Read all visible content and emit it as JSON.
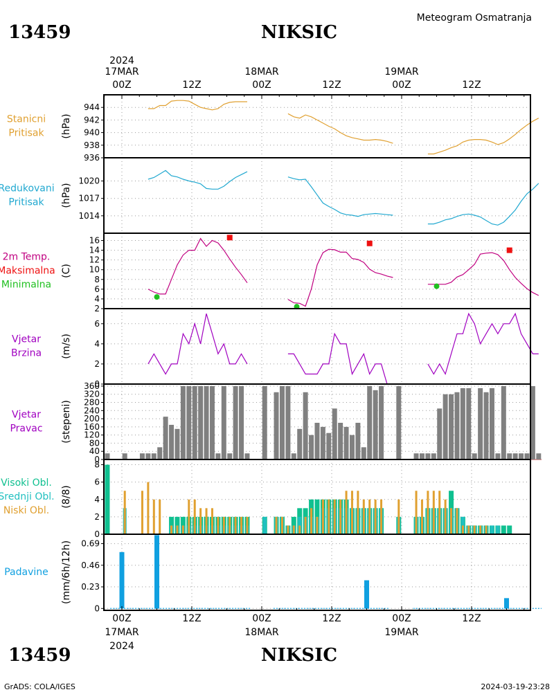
{
  "header": {
    "station_id": "13459",
    "station_name": "NIKSIC",
    "subtitle": "Meteogram  Osmatranja"
  },
  "time_axis": {
    "year": "2024",
    "top_dates": [
      "17MAR",
      "18MAR",
      "19MAR"
    ],
    "bottom_dates": [
      "17MAR",
      "18MAR",
      "19MAR"
    ],
    "hour_labels": [
      "00Z",
      "12Z",
      "00Z",
      "12Z",
      "00Z",
      "12Z"
    ]
  },
  "footer": {
    "credit": "GrADS: COLA/IGES",
    "timestamp": "2024-03-19-23:28"
  },
  "colors": {
    "station_pressure": "#e0a030",
    "reduced_pressure": "#20a8d0",
    "temp_line": "#c00080",
    "tmax": "#ee1010",
    "tmin": "#20c020",
    "wind": "#a000c0",
    "wind_dir": "#808080",
    "wind_dir_base": "#c03030",
    "cloud_high": "#10c090",
    "cloud_mid": "#20c0c0",
    "cloud_low": "#e0a030",
    "precip": "#10a0e0"
  },
  "chart_data": [
    {
      "type": "line",
      "panel": "station_pressure",
      "ylabel_left": [
        "Stanicni",
        "Pritisak"
      ],
      "yunit": "(hPa)",
      "ylim": [
        936,
        946
      ],
      "yticks": [
        936,
        938,
        940,
        942,
        944
      ],
      "series": [
        {
          "x": [
            4.5,
            5.5,
            6.5,
            7.5,
            8.5,
            9.5,
            10.5,
            11.5,
            12.5,
            13.5,
            14.5,
            15.5,
            16.5,
            17.5,
            18.5,
            19.5,
            20.5,
            21.5
          ],
          "y": [
            943.8,
            943.8,
            944.3,
            944.3,
            945.0,
            945.1,
            945.1,
            945.0,
            944.5,
            944.0,
            943.8,
            943.6,
            943.8,
            944.5,
            944.8,
            944.9,
            944.9,
            944.9
          ]
        },
        {
          "x": [
            28.5,
            29.5,
            30.5,
            31.5,
            32.5,
            33.5,
            34.5,
            35.5,
            36.5,
            37.5,
            38.5,
            39.5,
            40.5,
            41.5,
            42.5,
            43.5,
            44.5,
            45.5,
            46.5
          ],
          "y": [
            943.0,
            942.5,
            942.3,
            942.8,
            942.5,
            942.0,
            941.5,
            941.0,
            940.6,
            940.0,
            939.5,
            939.2,
            939.0,
            938.8,
            938.8,
            938.9,
            938.8,
            938.6,
            938.3
          ]
        },
        {
          "x": [
            52.5,
            53.5,
            54.5,
            55.5,
            56.5,
            57.5,
            58.5,
            59.5,
            60.5,
            61.5,
            62.5,
            63.5,
            64.5,
            65.5,
            66.5,
            67.5,
            68.5,
            69.5,
            70.5,
            71.5
          ],
          "y": [
            936.6,
            936.6,
            936.9,
            937.2,
            937.6,
            937.9,
            938.5,
            938.8,
            938.9,
            938.9,
            938.8,
            938.5,
            938.1,
            938.4,
            939.0,
            939.7,
            940.5,
            941.2,
            941.8,
            942.3
          ]
        }
      ]
    },
    {
      "type": "line",
      "panel": "reduced_pressure",
      "ylabel_left": [
        "Redukovani",
        "Pritisak"
      ],
      "yunit": "(hPa)",
      "ylim": [
        1011,
        1024
      ],
      "yticks": [
        1014,
        1017,
        1020
      ],
      "series": [
        {
          "x": [
            4.5,
            5.5,
            6.5,
            7.5,
            8.5,
            9.5,
            10.5,
            11.5,
            12.5,
            13.5,
            14.5,
            15.5,
            16.5,
            17.5,
            18.5,
            19.5,
            20.5,
            21.5
          ],
          "y": [
            1020.3,
            1020.6,
            1021.2,
            1021.8,
            1020.9,
            1020.7,
            1020.3,
            1020.0,
            1019.8,
            1019.5,
            1018.7,
            1018.6,
            1018.6,
            1019.1,
            1019.9,
            1020.6,
            1021.1,
            1021.6
          ]
        },
        {
          "x": [
            28.5,
            29.5,
            30.5,
            31.5,
            32.5,
            33.5,
            34.5,
            35.5,
            36.5,
            37.5,
            38.5,
            39.5,
            40.5,
            41.5,
            42.5,
            43.5,
            44.5,
            45.5,
            46.5
          ],
          "y": [
            1020.7,
            1020.4,
            1020.2,
            1020.3,
            1019.0,
            1017.6,
            1016.2,
            1015.6,
            1015.1,
            1014.5,
            1014.2,
            1014.1,
            1013.9,
            1014.2,
            1014.3,
            1014.4,
            1014.3,
            1014.2,
            1014.1
          ]
        },
        {
          "x": [
            52.5,
            53.5,
            54.5,
            55.5,
            56.5,
            57.5,
            58.5,
            59.5,
            60.5,
            61.5,
            62.5,
            63.5,
            64.5,
            65.5,
            66.5,
            67.5,
            68.5,
            69.5,
            70.5,
            71.5
          ],
          "y": [
            1012.6,
            1012.6,
            1012.9,
            1013.3,
            1013.5,
            1013.9,
            1014.2,
            1014.3,
            1014.1,
            1013.8,
            1013.2,
            1012.6,
            1012.4,
            1012.9,
            1013.9,
            1015.0,
            1016.5,
            1017.8,
            1018.6,
            1019.6
          ]
        }
      ]
    },
    {
      "type": "line",
      "panel": "temperature",
      "ylabel_left": [
        "2m Temp.",
        "Maksimalna",
        "Minimalna"
      ],
      "yunit": "(C)",
      "ylim": [
        2,
        17.5
      ],
      "yticks": [
        2,
        4,
        6,
        8,
        10,
        12,
        14,
        16
      ],
      "series": [
        {
          "name": "2m Temp.",
          "x": [
            4.5,
            5.5,
            6.5,
            7.5,
            8.5,
            9.5,
            10.5,
            11.5,
            12.5,
            13.5,
            14.5,
            15.5,
            16.5,
            17.5,
            18.5,
            19.5,
            20.5,
            21.5
          ],
          "y": [
            6.0,
            5.4,
            5.0,
            5.0,
            8.0,
            11.0,
            13.0,
            14.0,
            14.0,
            16.4,
            14.8,
            16.0,
            15.5,
            14.0,
            12.2,
            10.5,
            9.0,
            7.3
          ]
        },
        {
          "name": "2m Temp.",
          "x": [
            28.5,
            29.5,
            30.5,
            31.5,
            32.5,
            33.5,
            34.5,
            35.5,
            36.5,
            37.5,
            38.5,
            39.5,
            40.5,
            41.5,
            42.5,
            43.5,
            44.5,
            45.5,
            46.5
          ],
          "y": [
            3.9,
            3.2,
            3.1,
            2.5,
            6.0,
            11.0,
            13.5,
            14.2,
            14.1,
            13.6,
            13.6,
            12.3,
            12.1,
            11.5,
            10.1,
            9.4,
            9.1,
            8.7,
            8.4
          ]
        },
        {
          "name": "2m Temp.",
          "x": [
            52.5,
            53.5,
            54.5,
            55.5,
            56.5,
            57.5,
            58.5,
            59.5,
            60.5,
            61.5,
            62.5,
            63.5,
            64.5,
            65.5,
            66.5,
            67.5,
            68.5,
            69.5,
            70.5,
            71.5
          ],
          "y": [
            7.0,
            7.0,
            7.0,
            7.0,
            7.4,
            8.5,
            9.0,
            10.0,
            11.1,
            13.2,
            13.4,
            13.5,
            13.1,
            11.9,
            10.0,
            8.4,
            7.2,
            6.1,
            5.3,
            4.7
          ]
        }
      ],
      "tmax": {
        "x": [
          18.5,
          42.5,
          66.5
        ],
        "y": [
          16.6,
          15.4,
          14.0
        ]
      },
      "tmin": {
        "x": [
          6.0,
          30.0,
          54.0
        ],
        "y": [
          4.4,
          2.4,
          6.6
        ]
      }
    },
    {
      "type": "line",
      "panel": "wind_speed",
      "ylabel_left": [
        "Vjetar",
        "Brzina"
      ],
      "yunit": "(m/s)",
      "ylim": [
        0,
        7.5
      ],
      "yticks": [
        0,
        2,
        4,
        6
      ],
      "series": [
        {
          "x": [
            4.5,
            5.5,
            6.5,
            7.5,
            8.5,
            9.5,
            10.5,
            11.5,
            12.5,
            13.5,
            14.5,
            15.5,
            16.5,
            17.5,
            18.5,
            19.5,
            20.5,
            21.5
          ],
          "y": [
            2,
            3,
            2,
            1,
            2,
            2,
            5,
            4,
            6,
            4,
            7,
            5,
            3,
            4,
            2,
            2,
            3,
            2
          ]
        },
        {
          "x": [
            28.5,
            29.5,
            30.5,
            31.5,
            32.5,
            33.5,
            34.5,
            35.5,
            36.5,
            37.5,
            38.5,
            39.5,
            40.5,
            41.5,
            42.5,
            43.5,
            44.5,
            45.5,
            46.5
          ],
          "y": [
            3,
            3,
            2,
            1,
            1,
            1,
            2,
            2,
            5,
            4,
            4,
            1,
            2,
            3,
            1,
            2,
            2,
            0,
            0
          ]
        },
        {
          "x": [
            52.5,
            53.5,
            54.5,
            55.5,
            56.5,
            57.5,
            58.5,
            59.5,
            60.5,
            61.5,
            62.5,
            63.5,
            64.5,
            65.5,
            66.5,
            67.5,
            68.5,
            69.5,
            70.5,
            71.5
          ],
          "y": [
            2,
            1,
            2,
            1,
            3,
            5,
            5,
            7,
            6,
            4,
            5,
            6,
            5,
            6,
            6,
            7,
            5,
            4,
            3,
            3
          ]
        }
      ]
    },
    {
      "type": "bar",
      "panel": "wind_direction",
      "ylabel_left": [
        "Vjetar",
        "Pravac"
      ],
      "yunit": "(stepeni)",
      "ylim": [
        0,
        370
      ],
      "yticks": [
        0,
        40,
        80,
        120,
        160,
        200,
        240,
        280,
        320,
        360
      ],
      "x": [
        -2.5,
        0.5,
        3.5,
        4.5,
        5.5,
        6.5,
        7.5,
        8.5,
        9.5,
        10.5,
        11.5,
        12.5,
        13.5,
        14.5,
        15.5,
        16.5,
        17.5,
        18.5,
        19.5,
        20.5,
        21.5,
        24.5,
        26.5,
        27.5,
        28.5,
        29.5,
        30.5,
        31.5,
        32.5,
        33.5,
        34.5,
        35.5,
        36.5,
        37.5,
        38.5,
        39.5,
        40.5,
        41.5,
        42.5,
        43.5,
        44.5,
        47.5,
        50.5,
        51.5,
        52.5,
        53.5,
        54.5,
        55.5,
        56.5,
        57.5,
        58.5,
        59.5,
        60.5,
        61.5,
        62.5,
        63.5,
        64.5,
        65.5,
        66.5,
        67.5,
        68.5,
        69.5,
        70.5,
        71.5
      ],
      "values": [
        30,
        30,
        30,
        30,
        30,
        60,
        210,
        170,
        150,
        360,
        360,
        360,
        360,
        360,
        360,
        30,
        360,
        30,
        360,
        360,
        30,
        360,
        330,
        360,
        360,
        30,
        150,
        330,
        120,
        180,
        160,
        130,
        250,
        180,
        160,
        120,
        180,
        60,
        360,
        340,
        360,
        360,
        30,
        30,
        30,
        30,
        250,
        320,
        320,
        330,
        350,
        350,
        30,
        350,
        330,
        350,
        30,
        360,
        30,
        30,
        30,
        30,
        360,
        30
      ]
    },
    {
      "type": "bar",
      "panel": "clouds",
      "ylabel_left": [
        "Visoki Obl.",
        "Srednji Obl.",
        "Niski Obl."
      ],
      "yunit": "(8/8)",
      "ylim": [
        0,
        8.6
      ],
      "yticks": [
        0,
        2,
        4,
        6,
        8
      ],
      "x": [
        -2.5,
        0.5,
        3.5,
        4.5,
        5.5,
        6.5,
        7.5,
        8.5,
        9.5,
        10.5,
        11.5,
        12.5,
        13.5,
        14.5,
        15.5,
        16.5,
        17.5,
        18.5,
        19.5,
        20.5,
        21.5,
        24.5,
        26.5,
        27.5,
        28.5,
        29.5,
        30.5,
        31.5,
        32.5,
        33.5,
        34.5,
        35.5,
        36.5,
        37.5,
        38.5,
        39.5,
        40.5,
        41.5,
        42.5,
        43.5,
        44.5,
        47.5,
        50.5,
        51.5,
        52.5,
        53.5,
        54.5,
        55.5,
        56.5,
        57.5,
        58.5,
        59.5,
        60.5,
        61.5,
        62.5,
        63.5,
        64.5,
        65.5,
        66.5,
        67.5,
        68.5,
        69.5,
        70.5,
        71.5
      ],
      "series": [
        {
          "name": "Visoki Obl.",
          "values": [
            8,
            0,
            0,
            0,
            0,
            0,
            0,
            2,
            2,
            2,
            2,
            2,
            2,
            2,
            2,
            2,
            2,
            2,
            2,
            2,
            2,
            2,
            2,
            2,
            1,
            2,
            3,
            3,
            4,
            4,
            4,
            4,
            4,
            4,
            4,
            3,
            3,
            3,
            3,
            3,
            3,
            2,
            2,
            2,
            3,
            3,
            3,
            3,
            5,
            3,
            2,
            1,
            1,
            1,
            1,
            1,
            1,
            1,
            1,
            0,
            0,
            0,
            0,
            0
          ]
        },
        {
          "name": "Srednji Obl.",
          "values": [
            0,
            3,
            0,
            0,
            0,
            0,
            0,
            1,
            1,
            1,
            1,
            1,
            1,
            1,
            1,
            1,
            1,
            1,
            1,
            1,
            1,
            2,
            2,
            2,
            1,
            1,
            2,
            2,
            2,
            2,
            3,
            3,
            3,
            3,
            3,
            3,
            3,
            3,
            3,
            3,
            3,
            2,
            2,
            2,
            3,
            3,
            3,
            3,
            3,
            3,
            2,
            1,
            1,
            1,
            1,
            1,
            1,
            0,
            0,
            0,
            0,
            0,
            0,
            0
          ]
        },
        {
          "name": "Niski Obl.",
          "values": [
            0,
            5,
            5,
            6,
            4,
            4,
            0,
            1,
            1,
            1,
            4,
            4,
            3,
            3,
            3,
            2,
            2,
            2,
            2,
            2,
            2,
            0,
            2,
            2,
            1,
            1,
            1,
            2,
            3,
            2,
            4,
            4,
            4,
            4,
            5,
            5,
            5,
            4,
            4,
            4,
            4,
            4,
            5,
            4,
            5,
            5,
            5,
            4,
            3,
            3,
            1,
            1,
            1,
            1,
            1,
            0,
            0,
            0,
            0,
            0,
            0,
            0,
            0,
            0
          ]
        }
      ]
    },
    {
      "type": "bar",
      "panel": "precipitation",
      "ylabel_left": [
        "Padavine"
      ],
      "yunit": "(mm/6h/12h)",
      "ylim": [
        -0.02,
        0.79
      ],
      "yticks": [
        0,
        0.23,
        0.46,
        0.69
      ],
      "x": [
        0,
        6,
        42,
        66
      ],
      "values": [
        0.6,
        0.78,
        0.3,
        0.11
      ]
    }
  ]
}
